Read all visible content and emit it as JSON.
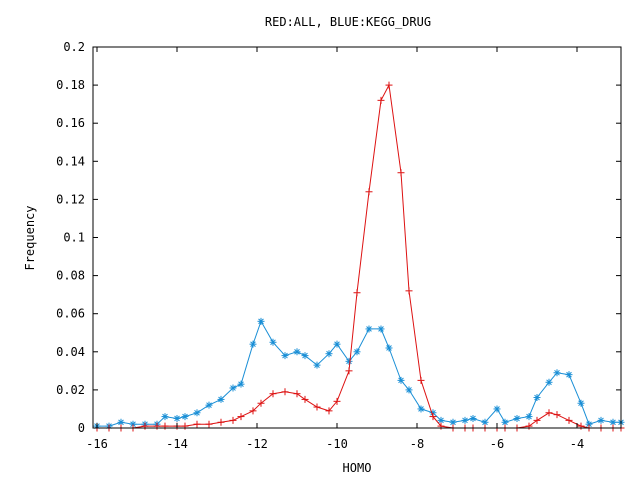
{
  "chart_data": {
    "type": "line",
    "title": "RED:ALL, BLUE:KEGG_DRUG",
    "xlabel": "HOMO",
    "ylabel": "Frequency",
    "xlim": [
      -16.1,
      -2.9
    ],
    "ylim": [
      0,
      0.2
    ],
    "x_ticks": [
      -16,
      -14,
      -12,
      -10,
      -8,
      -6,
      -4
    ],
    "y_ticks": [
      0,
      0.02,
      0.04,
      0.06,
      0.08,
      0.1,
      0.12,
      0.14,
      0.16,
      0.18,
      0.2
    ],
    "grid": false,
    "legend": "none",
    "series": [
      {
        "color": "#1a8fd6",
        "marker": "asterisk",
        "points": [
          [
            -16.0,
            0.001
          ],
          [
            -15.7,
            0.001
          ],
          [
            -15.4,
            0.003
          ],
          [
            -15.1,
            0.002
          ],
          [
            -14.8,
            0.002
          ],
          [
            -14.5,
            0.002
          ],
          [
            -14.3,
            0.006
          ],
          [
            -14.0,
            0.005
          ],
          [
            -13.8,
            0.006
          ],
          [
            -13.5,
            0.008
          ],
          [
            -13.2,
            0.012
          ],
          [
            -12.9,
            0.015
          ],
          [
            -12.6,
            0.021
          ],
          [
            -12.4,
            0.023
          ],
          [
            -12.1,
            0.044
          ],
          [
            -11.9,
            0.056
          ],
          [
            -11.6,
            0.045
          ],
          [
            -11.3,
            0.038
          ],
          [
            -11.0,
            0.04
          ],
          [
            -10.8,
            0.038
          ],
          [
            -10.5,
            0.033
          ],
          [
            -10.2,
            0.039
          ],
          [
            -10.0,
            0.044
          ],
          [
            -9.7,
            0.035
          ],
          [
            -9.5,
            0.04
          ],
          [
            -9.2,
            0.052
          ],
          [
            -8.9,
            0.052
          ],
          [
            -8.7,
            0.042
          ],
          [
            -8.4,
            0.025
          ],
          [
            -8.2,
            0.02
          ],
          [
            -7.9,
            0.01
          ],
          [
            -7.6,
            0.008
          ],
          [
            -7.4,
            0.004
          ],
          [
            -7.1,
            0.003
          ],
          [
            -6.8,
            0.004
          ],
          [
            -6.6,
            0.005
          ],
          [
            -6.3,
            0.003
          ],
          [
            -6.0,
            0.01
          ],
          [
            -5.8,
            0.003
          ],
          [
            -5.5,
            0.005
          ],
          [
            -5.2,
            0.006
          ],
          [
            -5.0,
            0.016
          ],
          [
            -4.7,
            0.024
          ],
          [
            -4.5,
            0.029
          ],
          [
            -4.2,
            0.028
          ],
          [
            -3.9,
            0.013
          ],
          [
            -3.7,
            0.002
          ],
          [
            -3.4,
            0.004
          ],
          [
            -3.1,
            0.003
          ],
          [
            -2.9,
            0.003
          ]
        ]
      },
      {
        "color": "#dd1111",
        "marker": "plus",
        "points": [
          [
            -16.0,
            0.0
          ],
          [
            -15.7,
            0.0
          ],
          [
            -15.4,
            0.0
          ],
          [
            -15.1,
            0.0
          ],
          [
            -14.8,
            0.001
          ],
          [
            -14.5,
            0.001
          ],
          [
            -14.3,
            0.001
          ],
          [
            -14.0,
            0.001
          ],
          [
            -13.8,
            0.001
          ],
          [
            -13.5,
            0.002
          ],
          [
            -13.2,
            0.002
          ],
          [
            -12.9,
            0.003
          ],
          [
            -12.6,
            0.004
          ],
          [
            -12.4,
            0.006
          ],
          [
            -12.1,
            0.009
          ],
          [
            -11.9,
            0.013
          ],
          [
            -11.6,
            0.018
          ],
          [
            -11.3,
            0.019
          ],
          [
            -11.0,
            0.018
          ],
          [
            -10.8,
            0.015
          ],
          [
            -10.5,
            0.011
          ],
          [
            -10.2,
            0.009
          ],
          [
            -10.0,
            0.014
          ],
          [
            -9.7,
            0.03
          ],
          [
            -9.5,
            0.071
          ],
          [
            -9.2,
            0.124
          ],
          [
            -8.9,
            0.172
          ],
          [
            -8.7,
            0.18
          ],
          [
            -8.4,
            0.134
          ],
          [
            -8.2,
            0.072
          ],
          [
            -7.9,
            0.025
          ],
          [
            -7.6,
            0.006
          ],
          [
            -7.4,
            0.001
          ],
          [
            -7.1,
            0.0
          ],
          [
            -6.8,
            0.0
          ],
          [
            -6.6,
            0.0
          ],
          [
            -6.3,
            0.0
          ],
          [
            -6.0,
            0.0
          ],
          [
            -5.8,
            0.0
          ],
          [
            -5.5,
            0.0
          ],
          [
            -5.2,
            0.001
          ],
          [
            -5.0,
            0.004
          ],
          [
            -4.7,
            0.008
          ],
          [
            -4.5,
            0.007
          ],
          [
            -4.2,
            0.004
          ],
          [
            -3.9,
            0.001
          ],
          [
            -3.7,
            0.0
          ],
          [
            -3.4,
            0.0
          ],
          [
            -3.1,
            0.0
          ],
          [
            -2.9,
            0.0
          ]
        ]
      }
    ]
  }
}
